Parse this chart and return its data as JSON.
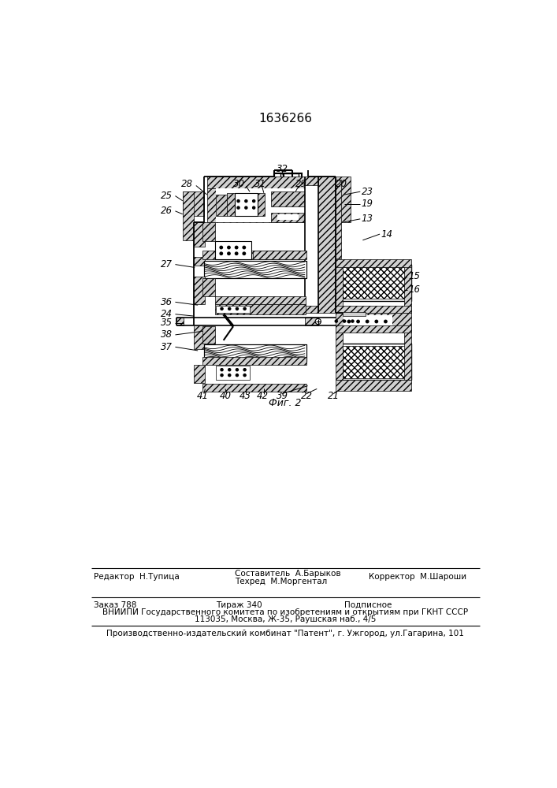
{
  "patent_number": "1636266",
  "fig_label": "Фиг. 2",
  "bg_color": "#ffffff",
  "text_color": "#000000",
  "footer": {
    "editor_label": "Редактор",
    "editor_name": "Н.Тупица",
    "composer_label": "Составитель",
    "composer_name": "А.Барыков",
    "techred_label": "Техред",
    "techred_name": "М.Моргентал",
    "corrector_label": "Корректор",
    "corrector_name": "М.Шароши",
    "order_label": "Заказ 788",
    "tirazh_label": "Тираж 340",
    "podpisnoe_label": "Подписное",
    "vniiipi_line1": "ВНИИПИ Государственного комитета по изобретениям и открытиям при ГКНТ СССР",
    "vniiipi_line2": "113035, Москва, Ж-35, Раушская наб., 4/5",
    "proizv_line": "Производственно-издательский комбинат \"Патент\", г. Ужгород, ул.Гагарина, 101"
  }
}
